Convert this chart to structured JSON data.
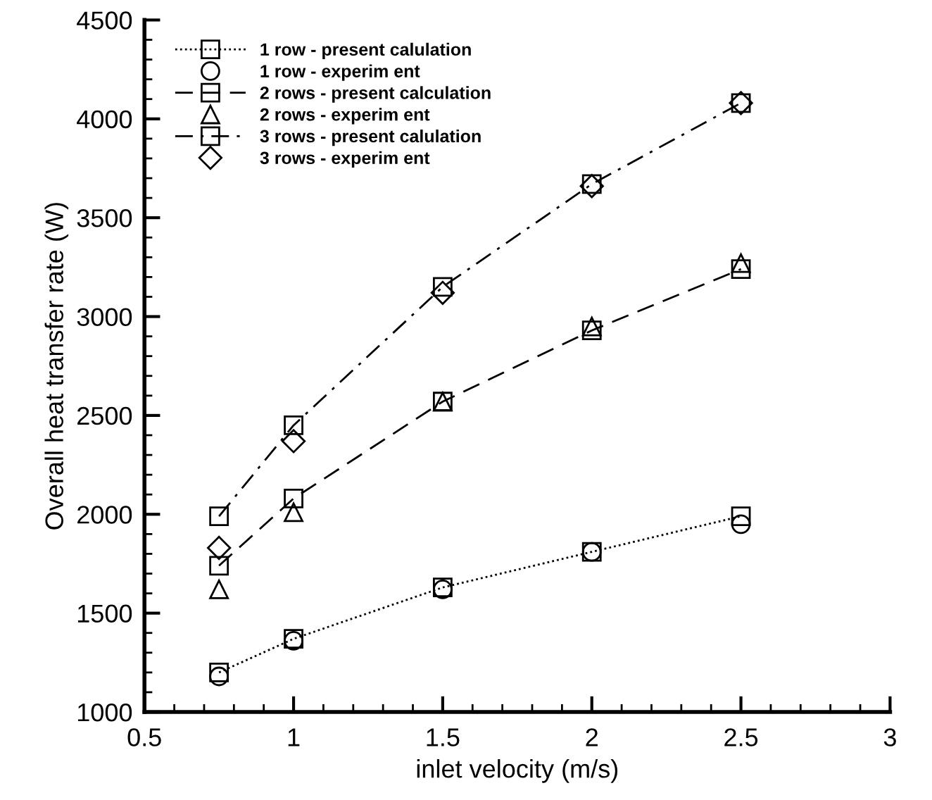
{
  "chart_data": {
    "type": "line",
    "xlabel": "inlet velocity (m/s)",
    "ylabel": "Overall heat transfer rate (W)",
    "x": [
      0.75,
      1,
      1.5,
      2,
      2.5
    ],
    "series": [
      {
        "name": "1 row - present calulation",
        "color": "#000000",
        "marker": "square",
        "line_style": "dotted",
        "values": [
          1200,
          1370,
          1630,
          1810,
          1990
        ]
      },
      {
        "name": "1 row - experim ent",
        "type": "scatter",
        "color": "#000000",
        "marker": "circle",
        "values": [
          1180,
          1360,
          1620,
          1810,
          1950
        ]
      },
      {
        "name": "2 rows - present calculation",
        "color": "#000000",
        "marker": "square",
        "line_style": "dashed",
        "values": [
          1740,
          2080,
          2570,
          2930,
          3240
        ]
      },
      {
        "name": "2 rows - experim ent",
        "type": "scatter",
        "color": "#000000",
        "marker": "triangle",
        "values": [
          1620,
          2010,
          2570,
          2950,
          3270
        ]
      },
      {
        "name": "3 rows - present calulation",
        "color": "#000000",
        "marker": "square",
        "line_style": "dashdot",
        "values": [
          1990,
          2450,
          3150,
          3670,
          4080
        ]
      },
      {
        "name": "3 rows - experim ent",
        "type": "scatter",
        "color": "#000000",
        "marker": "diamond",
        "values": [
          1830,
          2370,
          3120,
          3660,
          4080
        ]
      }
    ],
    "xlim": [
      0.5,
      3
    ],
    "xticks": [
      0.5,
      1,
      1.5,
      2,
      2.5,
      3
    ],
    "ylim": [
      1000,
      4500
    ],
    "yticks": [
      1000,
      1500,
      2000,
      2500,
      3000,
      3500,
      4000,
      4500
    ],
    "grid": false,
    "legend": "top left"
  }
}
